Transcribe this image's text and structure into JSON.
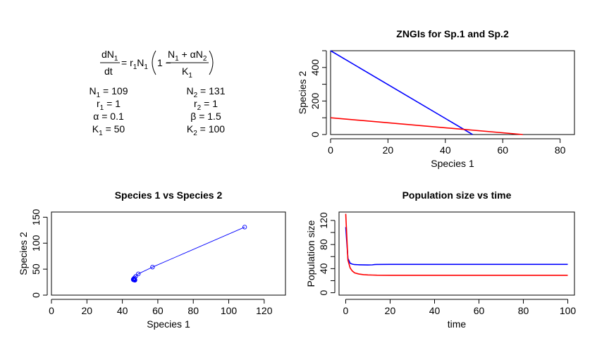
{
  "equation": {
    "lhs_num": "dN",
    "lhs_num_sub": "1",
    "lhs_den": "dt",
    "rhs_prefix_a": "= r",
    "rhs_prefix_a_sub": "1",
    "rhs_prefix_b": "N",
    "rhs_prefix_b_sub": "1",
    "paren_one_minus": "1 −",
    "frac_num_a": "N",
    "frac_num_a_sub": "1",
    "frac_num_b": " + αN",
    "frac_num_b_sub": "2",
    "frac_den": "K",
    "frac_den_sub": "1"
  },
  "parameters": {
    "species1": [
      {
        "sym": "N",
        "sub": "1",
        "rest": " = 109"
      },
      {
        "sym": "r",
        "sub": "1",
        "rest": " = 1"
      },
      {
        "sym": "α",
        "sub": "",
        "rest": " = 0.1"
      },
      {
        "sym": "K",
        "sub": "1",
        "rest": " = 50"
      }
    ],
    "species2": [
      {
        "sym": "N",
        "sub": "2",
        "rest": " = 131"
      },
      {
        "sym": "r",
        "sub": "2",
        "rest": " = 1"
      },
      {
        "sym": "β",
        "sub": "",
        "rest": " = 1.5"
      },
      {
        "sym": "K",
        "sub": "2",
        "rest": " = 100"
      }
    ]
  },
  "colors": {
    "species1": "#ff0000",
    "species2": "#0000ff",
    "axis": "#000000"
  },
  "chart_data": [
    {
      "id": "zngi",
      "type": "line",
      "title": "ZNGIs for Sp.1 and Sp.2",
      "xlabel": "Species 1",
      "ylabel": "Species 2",
      "xlim": [
        0,
        85
      ],
      "ylim": [
        0,
        500
      ],
      "xticks": [
        0,
        20,
        40,
        60,
        80
      ],
      "yticks": [
        0,
        200,
        400
      ],
      "minor_yticks": [
        100,
        300,
        500
      ],
      "series": [
        {
          "color": "blue",
          "x": [
            0,
            49.5
          ],
          "y": [
            500,
            0
          ]
        },
        {
          "color": "red",
          "x": [
            0,
            67
          ],
          "y": [
            100,
            0
          ]
        }
      ]
    },
    {
      "id": "phase",
      "type": "line",
      "title": "Species 1 vs Species 2",
      "xlabel": "Species 1",
      "ylabel": "Species 2",
      "xlim": [
        0,
        132
      ],
      "ylim": [
        0,
        160
      ],
      "xticks": [
        0,
        20,
        40,
        60,
        80,
        100,
        120
      ],
      "yticks": [
        0,
        50,
        100,
        150
      ],
      "series": [
        {
          "color": "blue",
          "markers": "circle-open",
          "x": [
            109,
            57,
            49,
            47.5,
            46.8,
            46.4,
            46.2,
            46.1,
            46.3,
            46.6,
            46.8,
            47.0,
            47.1,
            47.1,
            47.1
          ],
          "y": [
            131,
            54,
            41,
            36,
            33,
            31.5,
            30.5,
            30,
            29.5,
            29.2,
            29.1,
            29.0,
            29.0,
            29.0,
            29.0
          ]
        }
      ]
    },
    {
      "id": "timeseries",
      "type": "line",
      "title": "Population size vs time",
      "xlabel": "time",
      "ylabel": "Population size",
      "xlim": [
        -3,
        103
      ],
      "ylim": [
        -4,
        134
      ],
      "xticks": [
        0,
        20,
        40,
        60,
        80,
        100
      ],
      "yticks": [
        0,
        40,
        80,
        120
      ],
      "minor_yticks": [
        20,
        60,
        100
      ],
      "series": [
        {
          "color": "blue",
          "x": [
            0,
            1,
            2,
            3,
            4,
            6,
            8,
            10,
            12,
            13,
            14,
            20,
            40,
            60,
            80,
            100
          ],
          "y": [
            109,
            57,
            49,
            47.5,
            46.8,
            46.4,
            46.2,
            46.1,
            46.3,
            46.8,
            47.0,
            47.1,
            47.1,
            47.1,
            47.1,
            47.1
          ]
        },
        {
          "color": "red",
          "x": [
            0,
            1,
            2,
            3,
            4,
            6,
            8,
            10,
            12,
            14,
            20,
            40,
            60,
            80,
            100
          ],
          "y": [
            131,
            54,
            41,
            36,
            33,
            31,
            30,
            29.6,
            29.3,
            29.1,
            29.0,
            29.0,
            29.0,
            29.0,
            29.0
          ]
        }
      ]
    }
  ]
}
